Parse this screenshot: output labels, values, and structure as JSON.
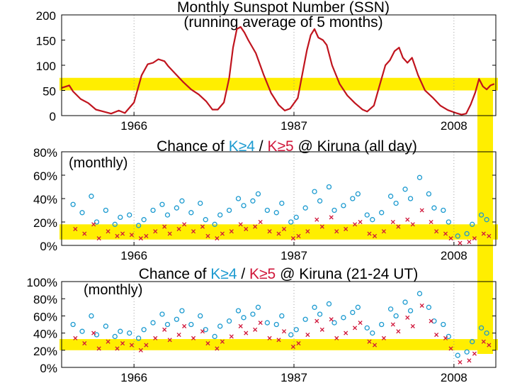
{
  "colors": {
    "highlight": "#ffee00",
    "ssn_line": "#c0141e",
    "k4": "#1b9ad0",
    "k5": "#d0163a",
    "title": "#000000"
  },
  "chart_data": [
    {
      "type": "line",
      "title": "Monthly Sunspot Number (SSN)",
      "subtitle": "(running  average of 5 months)",
      "xlim": [
        1956.5,
        2013.5
      ],
      "ylim": [
        0,
        200
      ],
      "y_ticks": [
        0,
        50,
        100,
        150,
        200
      ],
      "y_tick_labels": [
        "0",
        "50",
        "100",
        "150",
        "200"
      ],
      "x_ticks": [
        1966,
        1987,
        2008
      ],
      "x_tick_labels": [
        "1966",
        "1987",
        "2008"
      ],
      "highlight_band": [
        50,
        75
      ],
      "series": [
        {
          "x": [
            1956.5,
            1957.5,
            1958.0,
            1959.0,
            1960.0,
            1961.0,
            1962.0,
            1963.0,
            1964.0,
            1964.8,
            1966.0,
            1967.0,
            1967.8,
            1968.5,
            1969.2,
            1970.0,
            1970.5,
            1971.5,
            1972.5,
            1973.5,
            1974.5,
            1975.5,
            1976.3,
            1977.0,
            1977.8,
            1978.5,
            1979.0,
            1979.5,
            1980.0,
            1980.5,
            1981.0,
            1982.0,
            1983.0,
            1984.0,
            1985.0,
            1985.8,
            1986.5,
            1987.5,
            1988.0,
            1988.7,
            1989.2,
            1989.7,
            1990.2,
            1990.8,
            1991.3,
            1992.0,
            1993.0,
            1994.0,
            1995.0,
            1996.0,
            1996.6,
            1997.5,
            1998.2,
            1999.0,
            1999.6,
            2000.2,
            2000.8,
            2001.3,
            2001.9,
            2002.5,
            2003.3,
            2004.2,
            2005.2,
            2006.2,
            2007.2,
            2008.3,
            2009.0,
            2009.6,
            2010.2,
            2010.8,
            2011.3,
            2011.8,
            2012.3,
            2012.8,
            2013.3
          ],
          "y": [
            55,
            60,
            48,
            33,
            25,
            12,
            8,
            4,
            10,
            5,
            26,
            80,
            102,
            105,
            112,
            108,
            98,
            82,
            66,
            52,
            42,
            28,
            12,
            12,
            26,
            75,
            135,
            172,
            176,
            165,
            150,
            124,
            82,
            45,
            21,
            10,
            14,
            35,
            75,
            130,
            160,
            172,
            155,
            150,
            140,
            100,
            63,
            40,
            25,
            12,
            8,
            20,
            58,
            100,
            110,
            128,
            135,
            115,
            105,
            115,
            80,
            50,
            36,
            20,
            11,
            5,
            2,
            4,
            22,
            46,
            73,
            58,
            52,
            60,
            63
          ]
        }
      ]
    },
    {
      "type": "scatter",
      "title_parts": [
        "Chance of ",
        "K≥4",
        " / ",
        "K≥5",
        " @ Kiruna (all day)"
      ],
      "note": "(monthly)",
      "xlim": [
        1956.5,
        2013.5
      ],
      "ylim": [
        0,
        80
      ],
      "y_ticks": [
        0,
        20,
        40,
        60,
        80
      ],
      "y_tick_labels": [
        "0%",
        "20%",
        "40%",
        "60%",
        "80%"
      ],
      "x_ticks": [
        1966,
        1987,
        2008
      ],
      "x_tick_labels": [
        "1966",
        "1987",
        "2008"
      ],
      "highlight_band": [
        5,
        18
      ],
      "series": [
        {
          "name": "K≥4",
          "marker": "circle",
          "x": [
            1958.0,
            1959.2,
            1960.4,
            1961.1,
            1962.3,
            1963.5,
            1964.2,
            1965.4,
            1966.6,
            1967.3,
            1968.5,
            1969.7,
            1970.4,
            1971.6,
            1972.3,
            1973.5,
            1974.7,
            1975.4,
            1976.6,
            1977.3,
            1978.5,
            1979.7,
            1980.4,
            1981.6,
            1982.3,
            1983.5,
            1984.7,
            1985.4,
            1986.6,
            1987.3,
            1988.5,
            1989.7,
            1990.4,
            1991.6,
            1992.3,
            1993.5,
            1994.7,
            1995.4,
            1996.6,
            1997.3,
            1998.5,
            1999.7,
            2000.4,
            2001.6,
            2002.3,
            2003.5,
            2004.7,
            2005.4,
            2006.6,
            2007.3,
            2008.5,
            2009.7,
            2010.4,
            2011.6,
            2012.3
          ],
          "y": [
            35,
            28,
            42,
            20,
            30,
            18,
            24,
            26,
            17,
            22,
            30,
            35,
            26,
            32,
            38,
            28,
            36,
            22,
            18,
            26,
            30,
            40,
            34,
            38,
            44,
            30,
            28,
            36,
            20,
            24,
            32,
            46,
            38,
            50,
            30,
            34,
            40,
            44,
            26,
            22,
            28,
            42,
            36,
            48,
            40,
            58,
            44,
            32,
            30,
            20,
            8,
            10,
            18,
            26,
            22
          ]
        },
        {
          "name": "K≥5",
          "marker": "cross",
          "x": [
            1958.3,
            1959.5,
            1960.7,
            1961.4,
            1962.6,
            1963.8,
            1964.5,
            1965.7,
            1966.9,
            1967.6,
            1968.8,
            1970.0,
            1970.7,
            1971.9,
            1972.6,
            1973.8,
            1975.0,
            1975.7,
            1976.9,
            1977.6,
            1978.8,
            1980.0,
            1980.7,
            1981.9,
            1982.6,
            1983.8,
            1985.0,
            1985.7,
            1986.9,
            1987.6,
            1988.8,
            1990.0,
            1990.7,
            1991.9,
            1992.6,
            1993.8,
            1995.0,
            1995.7,
            1996.9,
            1997.6,
            1998.8,
            2000.0,
            2000.7,
            2001.9,
            2002.6,
            2003.8,
            2005.0,
            2005.7,
            2006.9,
            2007.6,
            2008.8,
            2010.0,
            2010.7,
            2011.9,
            2012.6
          ],
          "y": [
            14,
            10,
            18,
            6,
            12,
            8,
            10,
            9,
            6,
            8,
            12,
            16,
            10,
            14,
            18,
            12,
            16,
            8,
            6,
            10,
            12,
            18,
            14,
            16,
            20,
            12,
            10,
            14,
            6,
            8,
            12,
            22,
            16,
            24,
            12,
            14,
            18,
            20,
            10,
            8,
            12,
            20,
            16,
            22,
            18,
            30,
            20,
            12,
            10,
            6,
            2,
            3,
            6,
            10,
            8
          ]
        }
      ]
    },
    {
      "type": "scatter",
      "title_parts": [
        "Chance of ",
        "K≥4",
        " / ",
        "K≥5",
        " @ Kiruna (21-24 UT)"
      ],
      "note": "(monthly)",
      "xlim": [
        1956.5,
        2013.5
      ],
      "ylim": [
        0,
        100
      ],
      "y_ticks": [
        0,
        20,
        40,
        60,
        80,
        100
      ],
      "y_tick_labels": [
        "0%",
        "20%",
        "40%",
        "60%",
        "80%",
        "100%"
      ],
      "x_ticks": [
        1966,
        1987,
        2008
      ],
      "x_tick_labels": [
        "1966",
        "1987",
        "2008"
      ],
      "highlight_band": [
        20,
        33
      ],
      "series": [
        {
          "name": "K≥4",
          "marker": "circle",
          "x": [
            1958.0,
            1959.2,
            1960.4,
            1961.1,
            1962.3,
            1963.5,
            1964.2,
            1965.4,
            1966.6,
            1967.3,
            1968.5,
            1969.7,
            1970.4,
            1971.6,
            1972.3,
            1973.5,
            1974.7,
            1975.4,
            1976.6,
            1977.3,
            1978.5,
            1979.7,
            1980.4,
            1981.6,
            1982.3,
            1983.5,
            1984.7,
            1985.4,
            1986.6,
            1987.3,
            1988.5,
            1989.7,
            1990.4,
            1991.6,
            1992.3,
            1993.5,
            1994.7,
            1995.4,
            1996.6,
            1997.3,
            1998.5,
            1999.7,
            2000.4,
            2001.6,
            2002.3,
            2003.5,
            2004.7,
            2005.4,
            2006.6,
            2007.3,
            2008.5,
            2009.7,
            2010.4,
            2011.6,
            2012.3
          ],
          "y": [
            50,
            42,
            60,
            38,
            48,
            36,
            42,
            40,
            34,
            44,
            52,
            62,
            50,
            56,
            66,
            50,
            60,
            44,
            36,
            48,
            54,
            66,
            58,
            62,
            70,
            52,
            50,
            60,
            38,
            44,
            56,
            70,
            62,
            74,
            52,
            58,
            64,
            70,
            46,
            40,
            50,
            68,
            60,
            76,
            66,
            86,
            70,
            54,
            50,
            36,
            14,
            18,
            30,
            46,
            40
          ]
        },
        {
          "name": "K≥5",
          "marker": "cross",
          "x": [
            1958.3,
            1959.5,
            1960.7,
            1961.4,
            1962.6,
            1963.8,
            1964.5,
            1965.7,
            1966.9,
            1967.6,
            1968.8,
            1970.0,
            1970.7,
            1971.9,
            1972.6,
            1973.8,
            1975.0,
            1975.7,
            1976.9,
            1977.6,
            1978.8,
            1980.0,
            1980.7,
            1981.9,
            1982.6,
            1983.8,
            1985.0,
            1985.7,
            1986.9,
            1987.6,
            1988.8,
            1990.0,
            1990.7,
            1991.9,
            1992.6,
            1993.8,
            1995.0,
            1995.7,
            1996.9,
            1997.6,
            1998.8,
            2000.0,
            2000.7,
            2001.9,
            2002.6,
            2003.8,
            2005.0,
            2005.7,
            2006.9,
            2007.6,
            2008.8,
            2010.0,
            2010.7,
            2011.9,
            2012.6
          ],
          "y": [
            34,
            28,
            40,
            22,
            30,
            22,
            28,
            26,
            20,
            26,
            34,
            44,
            32,
            38,
            48,
            34,
            42,
            28,
            22,
            30,
            36,
            48,
            40,
            44,
            52,
            34,
            32,
            42,
            24,
            28,
            38,
            54,
            44,
            56,
            34,
            40,
            46,
            52,
            30,
            26,
            34,
            50,
            42,
            58,
            48,
            72,
            54,
            38,
            34,
            22,
            6,
            8,
            16,
            30,
            26
          ]
        }
      ]
    }
  ]
}
